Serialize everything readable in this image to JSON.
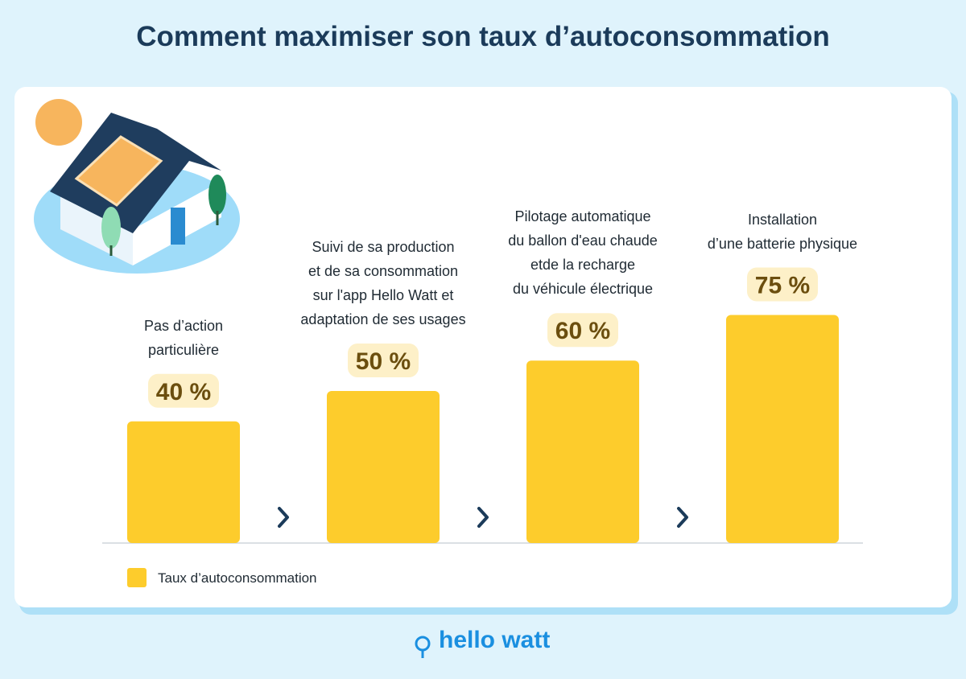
{
  "chart_data": {
    "type": "bar",
    "title": "Comment maximiser son taux d’autoconsommation",
    "categories": [
      "Pas d’action\nparticulière",
      "Suivi de sa production\net de sa consommation\nsur l'app Hello Watt et\nadaptation de ses usages",
      "Pilotage automatique\ndu ballon d'eau chaude\netde la recharge\ndu véhicule électrique",
      "Installation\nd’une batterie physique"
    ],
    "series": [
      {
        "name": "Taux d’autoconsommation",
        "color": "#fdcc2c",
        "values": [
          40,
          50,
          60,
          75
        ],
        "value_labels": [
          "40 %",
          "50 %",
          "60 %",
          "75 %"
        ]
      }
    ]
  },
  "footer": {
    "brand": "hello watt"
  }
}
